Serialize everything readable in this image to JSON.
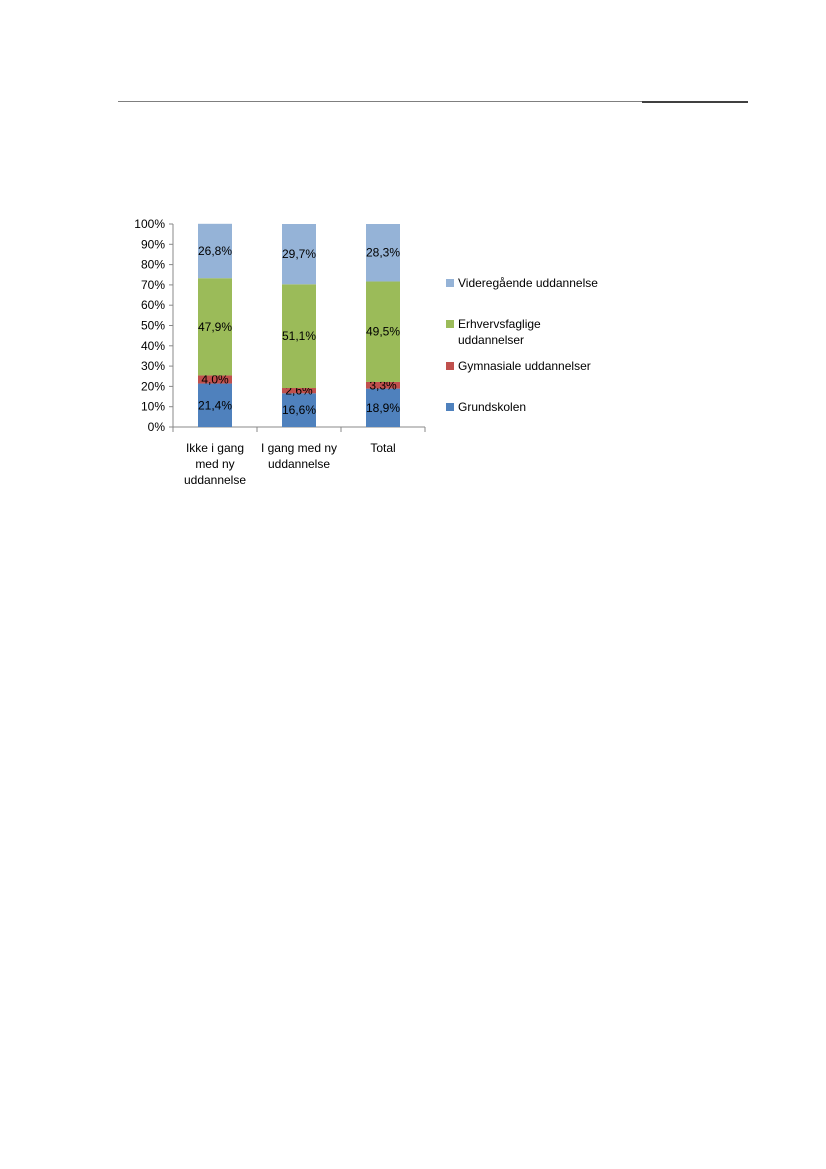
{
  "chart_data": {
    "type": "bar",
    "stacked": true,
    "percent": true,
    "categories": [
      [
        "Ikke i gang",
        "med ny",
        "uddannelse"
      ],
      [
        "I gang med ny",
        "uddannelse"
      ],
      [
        "Total"
      ]
    ],
    "series": [
      {
        "name": "Grundskolen",
        "color": "#4f81bd",
        "values": [
          21.4,
          16.6,
          18.9
        ],
        "labels": [
          "21,4%",
          "16,6%",
          "18,9%"
        ]
      },
      {
        "name": "Gymnasiale uddannelser",
        "color": "#c0504d",
        "values": [
          4.0,
          2.6,
          3.3
        ],
        "labels": [
          "4,0%",
          "2,6%",
          "3,3%"
        ]
      },
      {
        "name": "Erhvervsfaglige uddannelser",
        "color": "#9bbb59",
        "values": [
          47.9,
          51.1,
          49.5
        ],
        "labels": [
          "47,9%",
          "51,1%",
          "49,5%"
        ]
      },
      {
        "name": "Videregående uddannelse",
        "color": "#95b3d7",
        "values": [
          26.8,
          29.7,
          28.3
        ],
        "labels": [
          "26,8%",
          "29,7%",
          "28,3%"
        ]
      }
    ],
    "legend_order": [
      3,
      2,
      1,
      0
    ],
    "legend_lines": [
      [
        "Videregående uddannelse"
      ],
      [
        "Erhvervsfaglige",
        "uddannelser"
      ],
      [
        "Gymnasiale uddannelser"
      ],
      [
        "Grundskolen"
      ]
    ],
    "ylim": [
      0,
      100
    ],
    "yticks": [
      "0%",
      "10%",
      "20%",
      "30%",
      "40%",
      "50%",
      "60%",
      "70%",
      "80%",
      "90%",
      "100%"
    ],
    "grid": false,
    "legend_position": "right",
    "title": "",
    "xlabel": "",
    "ylabel": ""
  }
}
